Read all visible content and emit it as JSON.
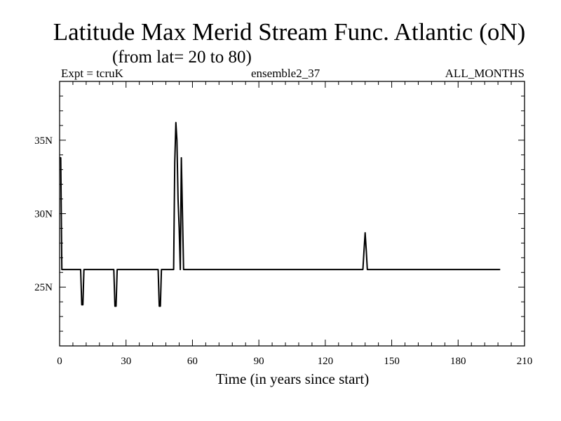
{
  "chart_data": {
    "type": "line",
    "title": "Latitude Max Merid Stream Func. Atlantic (oN)",
    "subtitle": "(from lat= 20 to 80)",
    "header_left": "Expt = tcruK",
    "header_center": "ensemble2_37",
    "header_right": "ALL_MONTHS",
    "xlabel": "Time (in years since start)",
    "ylabel": "",
    "xlim": [
      0,
      210
    ],
    "ylim": [
      21,
      39
    ],
    "xticks": [
      0,
      30,
      60,
      90,
      120,
      150,
      180,
      210
    ],
    "xtick_labels": [
      "0",
      "30",
      "60",
      "90",
      "120",
      "150",
      "180",
      "210"
    ],
    "yticks": [
      25,
      30,
      35
    ],
    "ytick_labels": [
      "25N",
      "30N",
      "35N"
    ],
    "grid": false,
    "line_color": "#000000",
    "series": [
      {
        "x": [
          0,
          0.5,
          1,
          1.5,
          9.5,
          10,
          10.5,
          11,
          24.5,
          25,
          25.5,
          26,
          44.5,
          45,
          45.5,
          46,
          51.5,
          52,
          52.5,
          53,
          53.5,
          54,
          54.5,
          55,
          55.5,
          56,
          56.5,
          57,
          137,
          137.5,
          138,
          138.5,
          139,
          139.5,
          199
        ],
        "y": [
          33.8,
          33.8,
          26.2,
          26.2,
          26.2,
          23.8,
          23.8,
          26.2,
          26.2,
          23.7,
          23.7,
          26.2,
          26.2,
          23.7,
          23.7,
          26.2,
          26.2,
          33.5,
          36.2,
          35.0,
          31.0,
          29.0,
          26.2,
          33.8,
          30.0,
          26.2,
          26.2,
          26.2,
          26.2,
          27.5,
          28.7,
          27.5,
          26.2,
          26.2,
          26.2
        ]
      }
    ]
  }
}
